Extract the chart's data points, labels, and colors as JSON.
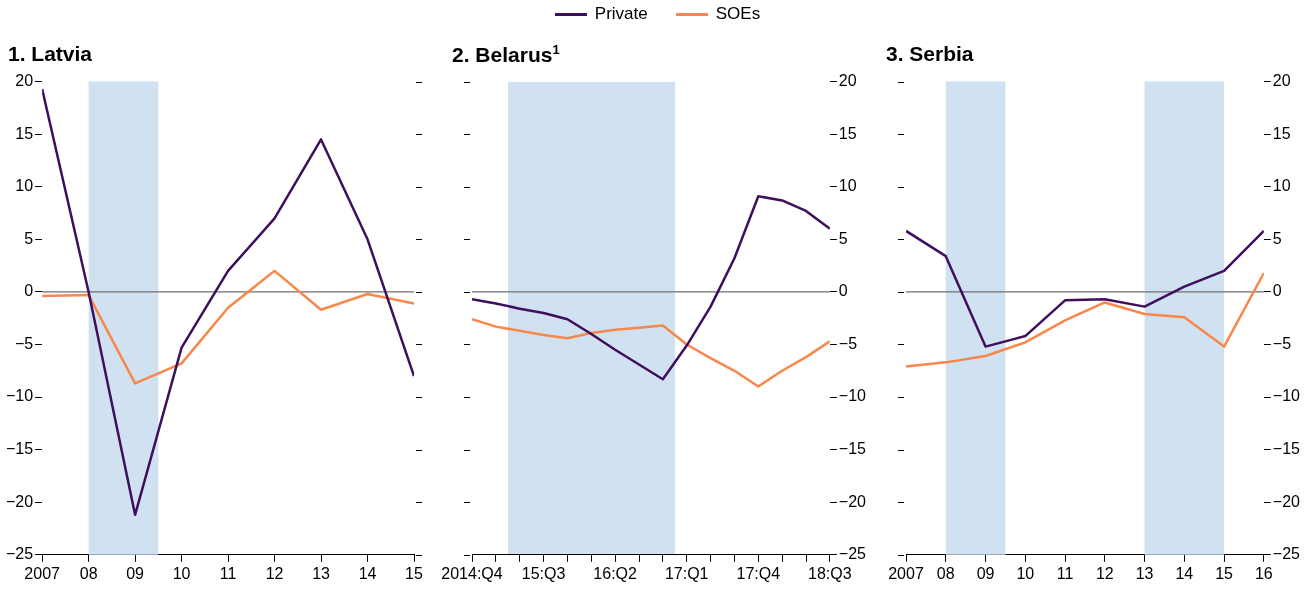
{
  "chart_data": [
    {
      "type": "line",
      "title": "1. Latvia",
      "legend": "top",
      "x": [
        2007,
        2008,
        2009,
        2010,
        2011,
        2012,
        2013,
        2014,
        2015
      ],
      "series": [
        {
          "name": "Private",
          "color": "#3f0f5e",
          "values": [
            19.3,
            0,
            -21.2,
            -5.3,
            2.0,
            7.0,
            14.5,
            5.0,
            -8.0
          ]
        },
        {
          "name": "SOEs",
          "color": "#f7874a",
          "values": [
            -0.4,
            -0.3,
            -8.7,
            -6.8,
            -1.5,
            2.0,
            -1.7,
            -0.2,
            -1.1
          ]
        }
      ],
      "xlim": [
        2007,
        2015
      ],
      "xticks": [
        {
          "value": 2007,
          "label": "2007"
        },
        {
          "value": 2008,
          "label": "08"
        },
        {
          "value": 2009,
          "label": "09"
        },
        {
          "value": 2010,
          "label": "10"
        },
        {
          "value": 2011,
          "label": "11"
        },
        {
          "value": 2012,
          "label": "12"
        },
        {
          "value": 2013,
          "label": "13"
        },
        {
          "value": 2014,
          "label": "14"
        },
        {
          "value": 2015,
          "label": "15"
        }
      ],
      "ylim": [
        -25,
        20
      ],
      "yticks": [
        {
          "value": -25,
          "label": "−25"
        },
        {
          "value": -20,
          "label": "−20"
        },
        {
          "value": -15,
          "label": "−15"
        },
        {
          "value": -10,
          "label": "−10"
        },
        {
          "value": -5,
          "label": "−5"
        },
        0,
        5,
        10,
        15,
        20
      ],
      "bands": [
        {
          "axis": "x",
          "from": 2008,
          "to": 2009.5,
          "color": "#d0e2f1"
        }
      ],
      "ref_lines": [
        {
          "axis": "y",
          "value": 0,
          "color": "#6e6e6e"
        }
      ],
      "grid": false
    },
    {
      "type": "line",
      "title": "2. Belarus$^{1}$",
      "categories": [
        "2014:Q4",
        null,
        null,
        "15:Q3",
        null,
        null,
        "16:Q2",
        null,
        null,
        "17:Q1",
        null,
        null,
        "17:Q4",
        null,
        null,
        "18:Q3"
      ],
      "series": [
        {
          "color": "#3f0f5e",
          "values": [
            -0.7,
            -1.1,
            -1.6,
            -2.0,
            -2.6,
            -4.0,
            -5.5,
            -6.9,
            -8.3,
            -5.1,
            -1.4,
            3.2,
            9.1,
            8.7,
            7.7,
            6.0
          ]
        },
        {
          "color": "#f7874a",
          "values": [
            -2.6,
            -3.3,
            -3.7,
            -4.1,
            -4.4,
            -3.9,
            -3.6,
            -3.4,
            -3.2,
            -5.0,
            -6.3,
            -7.5,
            -9.0,
            -7.5,
            -6.2,
            -4.7
          ]
        }
      ],
      "ylim": [
        -25,
        20
      ],
      "yticks": [
        {
          "value": -25,
          "label": "−25"
        },
        {
          "value": -20,
          "label": "−20"
        },
        {
          "value": -15,
          "label": "−15"
        },
        {
          "value": -10,
          "label": "−10"
        },
        {
          "value": -5,
          "label": "−5"
        },
        0,
        5,
        10,
        15,
        20
      ],
      "ref_lines": [
        {
          "axis": "y",
          "value": 0,
          "color": "#6e6e6e"
        }
      ],
      "grid": false
    },
    {
      "type": "line",
      "title": "3. Serbia",
      "x": [
        2007,
        2008,
        2009,
        2010,
        2011,
        2012,
        2013,
        2014,
        2015,
        2016
      ],
      "series": [
        {
          "color": "#3f0f5e",
          "values": [
            5.8,
            3.4,
            -5.2,
            -4.2,
            -0.8,
            -0.7,
            -1.4,
            0.5,
            2.0,
            5.8
          ]
        },
        {
          "color": "#f7874a",
          "values": [
            -7.1,
            -6.7,
            -6.1,
            -4.8,
            -2.7,
            -1.0,
            -2.1,
            -2.4,
            -5.2,
            1.8
          ]
        }
      ],
      "xlim": [
        2007,
        2016
      ],
      "xticks": [
        {
          "value": 2007,
          "label": "2007"
        },
        {
          "value": 2008,
          "label": "08"
        },
        {
          "value": 2009,
          "label": "09"
        },
        {
          "value": 2010,
          "label": "10"
        },
        {
          "value": 2011,
          "label": "11"
        },
        {
          "value": 2012,
          "label": "12"
        },
        {
          "value": 2013,
          "label": "13"
        },
        {
          "value": 2014,
          "label": "14"
        },
        {
          "value": 2015,
          "label": "15"
        },
        {
          "value": 2016,
          "label": "16"
        }
      ],
      "ylim": [
        -25,
        20
      ],
      "yticks": [
        {
          "value": -25,
          "label": "−25"
        },
        {
          "value": -20,
          "label": "−20"
        },
        {
          "value": -15,
          "label": "−15"
        },
        {
          "value": -10,
          "label": "−10"
        },
        {
          "value": -5,
          "label": "−5"
        },
        0,
        5,
        10,
        15,
        20
      ],
      "bands": [
        {
          "axis": "x",
          "from": 2008,
          "to": 2009.5,
          "color": "#d0e2f1"
        },
        {
          "axis": "x",
          "from": 2013,
          "to": 2015,
          "color": "#d0e2f1"
        }
      ],
      "ref_lines": [
        {
          "axis": "y",
          "value": 0,
          "color": "#6e6e6e"
        }
      ],
      "grid": false
    }
  ]
}
